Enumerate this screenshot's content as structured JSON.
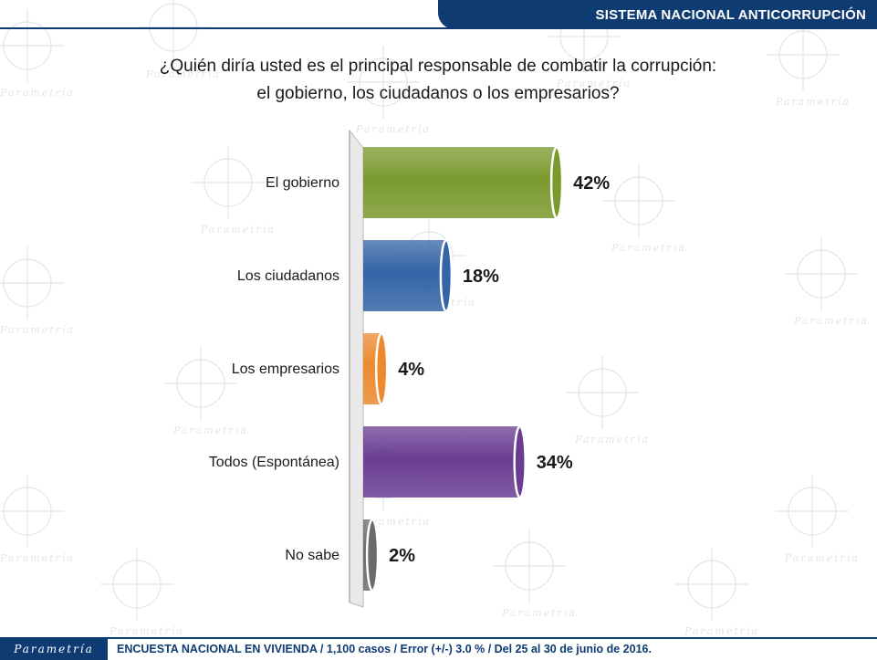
{
  "header": {
    "title": "SISTEMA NACIONAL ANTICORRUPCIÓN"
  },
  "question": {
    "line1": "¿Quién diría usted es el principal responsable de combatir la corrupción:",
    "line2": "el gobierno, los ciudadanos o los empresarios?"
  },
  "footer": {
    "brand": "Parametría",
    "note": "ENCUESTA NACIONAL EN VIVIENDA / 1,100 casos / Error (+/-) 3.0 % / Del 25 al 30 de junio de 2016."
  },
  "watermark": {
    "text": "Parametría"
  },
  "chart_data": {
    "type": "bar",
    "orientation": "horizontal",
    "categories": [
      "El gobierno",
      "Los ciudadanos",
      "Los empresarios",
      "Todos (Espontánea)",
      "No sabe"
    ],
    "values": [
      42,
      18,
      4,
      34,
      2
    ],
    "labels": [
      "42%",
      "18%",
      "4%",
      "34%",
      "2%"
    ],
    "colors": [
      "#7a9a2e",
      "#3464a6",
      "#ec8a2e",
      "#6a3d92",
      "#6b6b6b"
    ],
    "xlim": [
      0,
      50
    ],
    "grid": false,
    "legend": "none"
  }
}
